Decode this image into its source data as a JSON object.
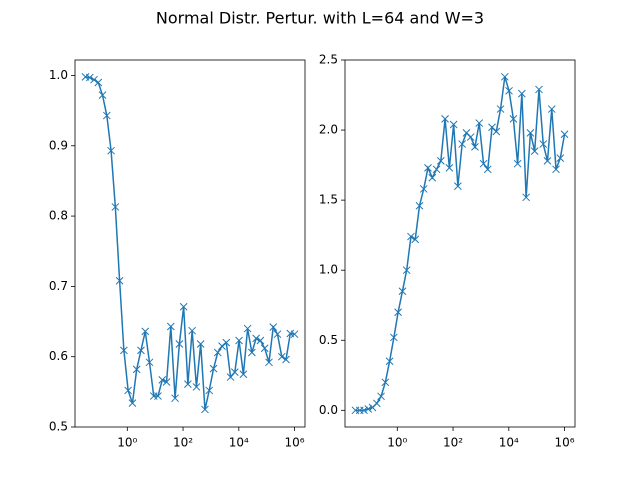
{
  "title": "Normal Distr. Pertur. with L=64 and W=3",
  "chart_data": [
    {
      "type": "line",
      "xscale": "log",
      "marker": "x",
      "x": [
        0.0316,
        0.045,
        0.064,
        0.091,
        0.129,
        0.184,
        0.262,
        0.372,
        0.53,
        0.754,
        1.07,
        1.53,
        2.17,
        3.09,
        4.4,
        6.25,
        8.89,
        12.6,
        18.0,
        25.6,
        36.4,
        51.8,
        73.7,
        105,
        149,
        212,
        302,
        429,
        611,
        869,
        1240,
        1760,
        2500,
        3560,
        5060,
        7200,
        10200,
        14600,
        20700,
        29400,
        41900,
        59600,
        84800,
        121000,
        172000,
        244000,
        348000,
        494000,
        703000,
        1000000
      ],
      "series": [
        {
          "color": "#1f77b4",
          "values": [
            0.998,
            0.997,
            0.994,
            0.99,
            0.972,
            0.943,
            0.893,
            0.813,
            0.708,
            0.609,
            0.552,
            0.534,
            0.582,
            0.609,
            0.636,
            0.592,
            0.544,
            0.544,
            0.567,
            0.564,
            0.643,
            0.541,
            0.618,
            0.671,
            0.561,
            0.637,
            0.557,
            0.618,
            0.525,
            0.552,
            0.583,
            0.606,
            0.615,
            0.62,
            0.571,
            0.578,
            0.623,
            0.575,
            0.64,
            0.606,
            0.626,
            0.623,
            0.612,
            0.592,
            0.642,
            0.632,
            0.6,
            0.596,
            0.633,
            0.632
          ]
        }
      ],
      "xlim": [
        0.0133,
        2370000
      ],
      "ylim": [
        0.5,
        1.022
      ],
      "xticks": [
        {
          "value": 1,
          "label": "10⁰"
        },
        {
          "value": 100,
          "label": "10²"
        },
        {
          "value": 10000,
          "label": "10⁴"
        },
        {
          "value": 1000000,
          "label": "10⁶"
        }
      ],
      "yticks": [
        0.5,
        0.6,
        0.7,
        0.8,
        0.9,
        {
          "value": 1,
          "label": "1.0"
        }
      ]
    },
    {
      "type": "line",
      "xscale": "log",
      "marker": "x",
      "x": [
        0.0316,
        0.045,
        0.064,
        0.091,
        0.129,
        0.184,
        0.262,
        0.372,
        0.53,
        0.754,
        1.07,
        1.53,
        2.17,
        3.09,
        4.4,
        6.25,
        8.89,
        12.6,
        18.0,
        25.6,
        36.4,
        51.8,
        73.7,
        105,
        149,
        212,
        302,
        429,
        611,
        869,
        1240,
        1760,
        2500,
        3560,
        5060,
        7200,
        10200,
        14600,
        20700,
        29400,
        41900,
        59600,
        84800,
        121000,
        172000,
        244000,
        348000,
        494000,
        703000,
        1000000
      ],
      "series": [
        {
          "color": "#1f77b4",
          "values": [
            0,
            0,
            0,
            0.01,
            0.02,
            0.05,
            0.1,
            0.2,
            0.35,
            0.52,
            0.7,
            0.85,
            1.0,
            1.24,
            1.22,
            1.46,
            1.58,
            1.73,
            1.66,
            1.72,
            1.78,
            2.08,
            1.73,
            2.04,
            1.6,
            1.9,
            1.98,
            1.95,
            1.88,
            2.05,
            1.76,
            1.72,
            2.02,
            1.99,
            2.15,
            2.38,
            2.28,
            2.08,
            1.76,
            2.26,
            1.52,
            1.98,
            1.85,
            2.29,
            1.9,
            1.78,
            2.15,
            1.72,
            1.8,
            1.97
          ]
        }
      ],
      "xlim": [
        0.0133,
        2370000
      ],
      "ylim": [
        -0.119,
        2.5
      ],
      "xticks": [
        {
          "value": 1,
          "label": "10⁰"
        },
        {
          "value": 100,
          "label": "10²"
        },
        {
          "value": 10000,
          "label": "10⁴"
        },
        {
          "value": 1000000,
          "label": "10⁶"
        }
      ],
      "yticks": [
        {
          "value": 0,
          "label": "0.0"
        },
        0.5,
        {
          "value": 1,
          "label": "1.0"
        },
        1.5,
        {
          "value": 2,
          "label": "2.0"
        },
        2.5
      ]
    }
  ]
}
